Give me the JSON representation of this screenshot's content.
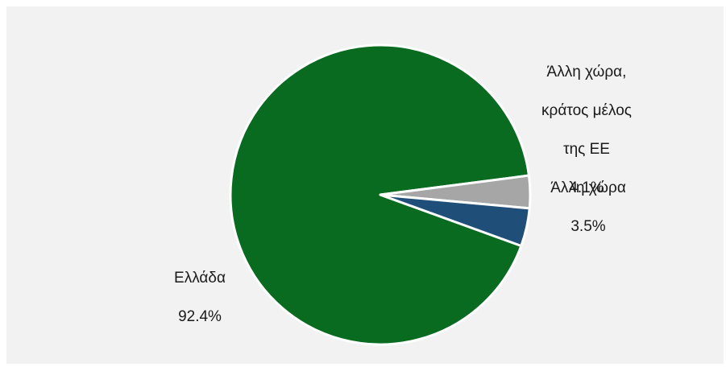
{
  "chart_data": {
    "type": "pie",
    "title": "",
    "slices": [
      {
        "label": "Ελλάδα",
        "value": 92.4,
        "value_label": "92.4%",
        "color": "#086b1f"
      },
      {
        "label": "Άλλη χώρα",
        "value": 3.5,
        "value_label": "3.5%",
        "color": "#a6a6a6"
      },
      {
        "label": "Άλλη χώρα, κράτος μέλος της ΕΕ",
        "value": 4.1,
        "value_label": "4.1%",
        "color": "#1f4e79"
      }
    ],
    "legend": "none",
    "data_labels": "outside"
  },
  "labels": {
    "greece": {
      "line1": "Ελλάδα",
      "value": "92.4%"
    },
    "other": {
      "line1": "Άλλη χώρα",
      "value": "3.5%"
    },
    "eu": {
      "line1": "Άλλη χώρα,",
      "line2": "κράτος μέλος",
      "line3": "της ΕΕ",
      "value": "4.1%"
    }
  }
}
